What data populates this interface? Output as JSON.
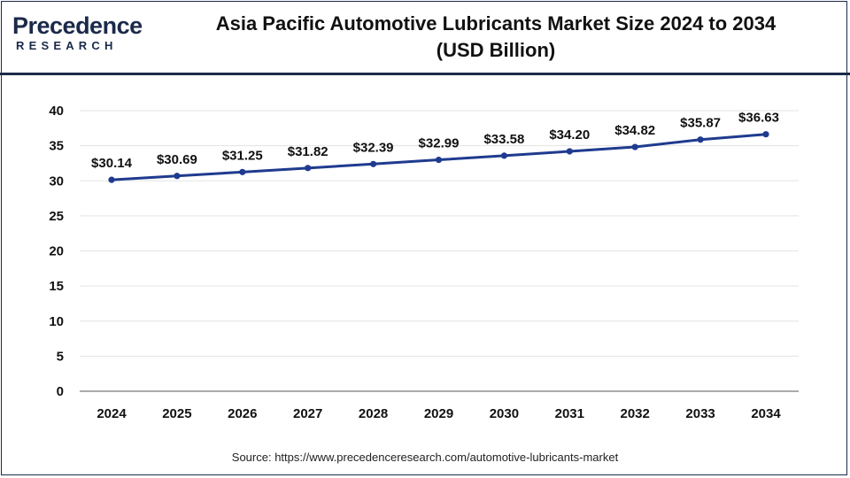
{
  "brand": {
    "name_main": "Precedence",
    "name_sub": "RESEARCH"
  },
  "title_line1": "Asia Pacific Automotive Lubricants Market Size 2024 to 2034",
  "title_line2": "(USD Billion)",
  "source": "Source: https://www.precedenceresearch.com/automotive-lubricants-market",
  "colors": {
    "line": "#1f3b8f",
    "grid": "#e3e3e3",
    "axis": "#777777",
    "brand": "#1b2a4a"
  },
  "chart_data": {
    "type": "line",
    "x": [
      "2024",
      "2025",
      "2026",
      "2027",
      "2028",
      "2029",
      "2030",
      "2031",
      "2032",
      "2033",
      "2034"
    ],
    "series": [
      {
        "values": [
          30.14,
          30.69,
          31.25,
          31.82,
          32.39,
          32.99,
          33.58,
          34.2,
          34.82,
          35.87,
          36.63
        ],
        "labels": [
          "$30.14",
          "$30.69",
          "$31.25",
          "$31.82",
          "$32.39",
          "$32.99",
          "$33.58",
          "$34.20",
          "$34.82",
          "$35.87",
          "$36.63"
        ]
      }
    ],
    "ylim": [
      0,
      40
    ],
    "yticks": [
      "0",
      "5",
      "10",
      "15",
      "20",
      "25",
      "30",
      "35",
      "40"
    ],
    "grid": true,
    "legend": "none"
  }
}
